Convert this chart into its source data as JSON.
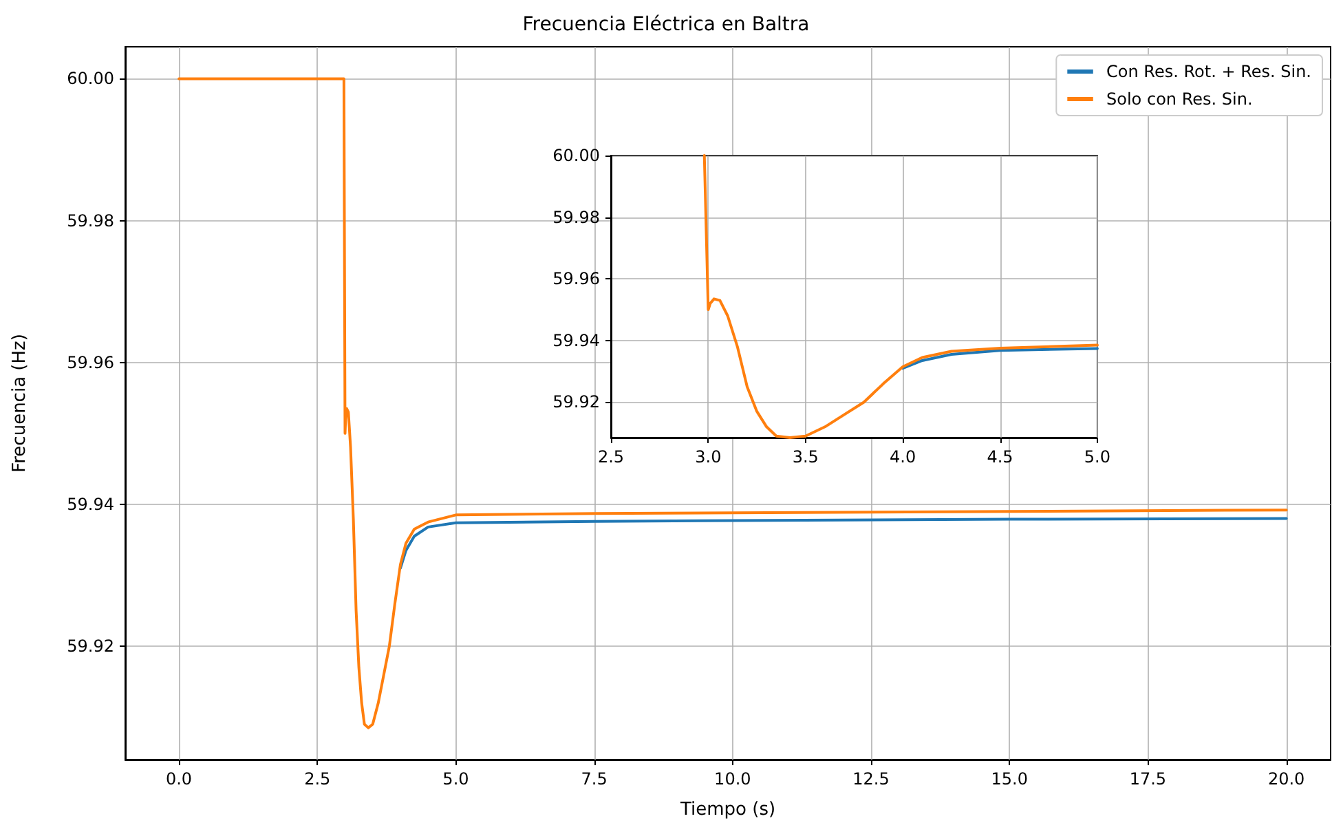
{
  "chart_data": [
    {
      "type": "line",
      "title": "Frecuencia Eléctrica en Baltra",
      "xlabel": "Tiempo (s)",
      "ylabel": "Frecuencia (Hz)",
      "xlim": [
        -0.97,
        20.8
      ],
      "ylim": [
        59.904,
        60.0045
      ],
      "xticks": [
        {
          "value": 0,
          "label": "0.0"
        },
        {
          "value": 2.5,
          "label": "2.5"
        },
        {
          "value": 5,
          "label": "5.0"
        },
        {
          "value": 7.5,
          "label": "7.5"
        },
        {
          "value": 10,
          "label": "10.0"
        },
        {
          "value": 12.5,
          "label": "12.5"
        },
        {
          "value": 15,
          "label": "15.0"
        },
        {
          "value": 17.5,
          "label": "17.5"
        },
        {
          "value": 20,
          "label": "20.0"
        }
      ],
      "yticks": [
        {
          "value": 59.92,
          "label": "59.92"
        },
        {
          "value": 59.94,
          "label": "59.94"
        },
        {
          "value": 59.96,
          "label": "59.96"
        },
        {
          "value": 59.98,
          "label": "59.98"
        },
        {
          "value": 60,
          "label": "60.00"
        }
      ],
      "grid": true,
      "legend": "top right",
      "x": [
        0,
        2.98,
        3.0,
        3.01,
        3.03,
        3.06,
        3.1,
        3.15,
        3.2,
        3.25,
        3.3,
        3.35,
        3.42,
        3.5,
        3.6,
        3.7,
        3.8,
        3.9,
        4.0,
        4.1,
        4.25,
        4.5,
        5.0,
        7.5,
        10,
        15,
        20
      ],
      "series": [
        {
          "name": "Con Res. Rot. + Res. Sin.",
          "color": "#1f77b4",
          "values": [
            null,
            null,
            null,
            null,
            null,
            null,
            null,
            null,
            null,
            null,
            null,
            null,
            null,
            null,
            null,
            null,
            null,
            null,
            59.931,
            59.9335,
            59.9355,
            59.9368,
            59.9374,
            59.9376,
            59.9377,
            59.9379,
            59.938
          ]
        },
        {
          "name": "Solo con Res. Sin.",
          "color": "#ff7f0e",
          "values": [
            60,
            60,
            59.95,
            59.952,
            59.9535,
            59.953,
            59.948,
            59.938,
            59.925,
            59.917,
            59.912,
            59.909,
            59.9085,
            59.909,
            59.912,
            59.916,
            59.92,
            59.926,
            59.9315,
            59.9345,
            59.9365,
            59.9375,
            59.9385,
            59.9387,
            59.9388,
            59.939,
            59.9392
          ]
        }
      ]
    },
    {
      "type": "line",
      "xlim": [
        2.5,
        5.0
      ],
      "ylim": [
        59.9085,
        60.0
      ],
      "xticks": [
        {
          "value": 2.5,
          "label": "2.5"
        },
        {
          "value": 3,
          "label": "3.0"
        },
        {
          "value": 3.5,
          "label": "3.5"
        },
        {
          "value": 4,
          "label": "4.0"
        },
        {
          "value": 4.5,
          "label": "4.5"
        },
        {
          "value": 5,
          "label": "5.0"
        }
      ],
      "yticks": [
        {
          "value": 59.92,
          "label": "59.92"
        },
        {
          "value": 59.94,
          "label": "59.94"
        },
        {
          "value": 59.96,
          "label": "59.96"
        },
        {
          "value": 59.98,
          "label": "59.98"
        },
        {
          "value": 60,
          "label": "60.00"
        }
      ],
      "grid": true,
      "x": [
        2.98,
        3.0,
        3.01,
        3.03,
        3.06,
        3.1,
        3.15,
        3.2,
        3.25,
        3.3,
        3.35,
        3.42,
        3.5,
        3.6,
        3.7,
        3.8,
        3.9,
        4.0,
        4.1,
        4.25,
        4.5,
        5.0
      ],
      "series": [
        {
          "color": "#1f77b4",
          "values": [
            null,
            null,
            null,
            null,
            null,
            null,
            null,
            null,
            null,
            null,
            null,
            null,
            null,
            null,
            null,
            null,
            null,
            59.931,
            59.9335,
            59.9355,
            59.9368,
            59.9374
          ]
        },
        {
          "color": "#ff7f0e",
          "values": [
            60,
            59.95,
            59.952,
            59.9535,
            59.953,
            59.948,
            59.938,
            59.925,
            59.917,
            59.912,
            59.909,
            59.9085,
            59.909,
            59.912,
            59.916,
            59.92,
            59.926,
            59.9315,
            59.9345,
            59.9365,
            59.9375,
            59.9385
          ]
        }
      ]
    }
  ]
}
